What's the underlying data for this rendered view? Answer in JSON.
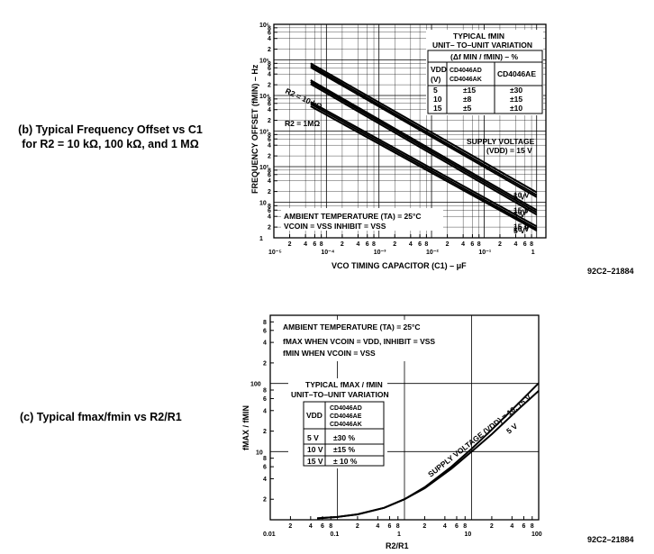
{
  "chart_data": [
    {
      "type": "line",
      "panel_caption_line1": "(b) Typical Frequency Offset vs C1",
      "panel_caption_line2": "for R2 = 10 kΩ, 100 kΩ, and 1 MΩ",
      "figure_code": "92C2–21884",
      "xlabel": "VCO  TIMING  CAPACITOR  (C1) – μF",
      "ylabel": "FREQUENCY  OFFSET  (fMIN) – Hz",
      "x_scale": "log",
      "y_scale": "log",
      "xlim": [
        1e-05,
        1.5
      ],
      "ylim": [
        1,
        1000000
      ],
      "x_decade_labels": [
        "10⁻⁵",
        "10⁻⁴",
        "10⁻³",
        "10⁻²",
        "10⁻¹",
        "1"
      ],
      "y_decade_labels": [
        "1",
        "10",
        "10²",
        "10³",
        "10⁴",
        "10⁵",
        "10⁶"
      ],
      "minor_tick_labels": [
        "2",
        "4",
        "6",
        "8"
      ],
      "grid": true,
      "r2_labels": [
        "R2 = 10 kΩ",
        "R2 = 1MΩ"
      ],
      "series": [
        {
          "name": "R2=10kΩ, 5 V",
          "x": [
            5e-05,
            1
          ],
          "y": [
            62000,
            14
          ]
        },
        {
          "name": "R2=10kΩ, 10 V",
          "x": [
            5e-05,
            1
          ],
          "y": [
            70000,
            16
          ]
        },
        {
          "name": "R2=10kΩ, 15 V",
          "x": [
            5e-05,
            1
          ],
          "y": [
            80000,
            19
          ]
        },
        {
          "name": "R2=100kΩ, 5 V",
          "x": [
            5e-05,
            1
          ],
          "y": [
            21000,
            4.5
          ]
        },
        {
          "name": "R2=100kΩ, 10 V",
          "x": [
            5e-05,
            1
          ],
          "y": [
            24000,
            5.2
          ]
        },
        {
          "name": "R2=100kΩ, 15 V",
          "x": [
            5e-05,
            1
          ],
          "y": [
            27000,
            6
          ]
        },
        {
          "name": "R2=1MΩ, 5 V",
          "x": [
            5e-05,
            1
          ],
          "y": [
            5000,
            1.6
          ]
        },
        {
          "name": "R2=1MΩ, 10 V",
          "x": [
            5e-05,
            1
          ],
          "y": [
            5800,
            1.8
          ]
        },
        {
          "name": "R2=1MΩ, 15 V",
          "x": [
            5e-05,
            1
          ],
          "y": [
            6600,
            2.1
          ]
        }
      ],
      "supply_voltage_label": "SUPPLY VOLTAGE",
      "vdd_label": "(VDD) = 15 V",
      "voltage_labels": [
        "10 V",
        "5 V",
        "15 V",
        "10V",
        "5 V",
        "15 V",
        "10 V",
        "5 V"
      ],
      "conditions_line1": "AMBIENT TEMPERATURE (TA) = 25°C",
      "conditions_line2": "VCOIN = VSS    INHIBIT = VSS",
      "table": {
        "title_line1": "TYPICAL  fMIN",
        "title_line2": "UNIT– TO–UNIT VARIATION",
        "title_line3": "(Δf MIN / fMIN) – %",
        "header_vdd": [
          "VDD",
          "(V)"
        ],
        "header_cols": [
          "CD4046AD CD4046AK",
          "CD4046AE"
        ],
        "rows": [
          [
            "5",
            "±15",
            "±30"
          ],
          [
            "10",
            "±8",
            "±15"
          ],
          [
            "15",
            "±5",
            "±10"
          ]
        ]
      }
    },
    {
      "type": "line",
      "panel_caption": "(c) Typical fmax/fmin vs R2/R1",
      "figure_code": "92C2–21884",
      "xlabel": "R2/R1",
      "ylabel": "fMAX / fMIN",
      "x_scale": "log",
      "y_scale": "log",
      "xlim": [
        0.01,
        100
      ],
      "ylim": [
        1,
        1000
      ],
      "x_decade_labels": [
        "0.01",
        "0.1",
        "1",
        "10",
        "100"
      ],
      "y_decade_labels": [
        "100",
        "10"
      ],
      "minor_tick_labels": [
        "2",
        "4",
        "6",
        "8"
      ],
      "grid": true,
      "series": [
        {
          "name": "VDD = 10, 15 V",
          "x": [
            0.05,
            0.1,
            0.2,
            0.5,
            1,
            2,
            5,
            10,
            20,
            50,
            100
          ],
          "y": [
            1.05,
            1.1,
            1.2,
            1.5,
            2,
            3,
            6,
            11,
            21,
            51,
            101
          ]
        },
        {
          "name": "5 V",
          "x": [
            0.05,
            0.1,
            0.2,
            0.5,
            1,
            2,
            5,
            10,
            20,
            50,
            100
          ],
          "y": [
            1.05,
            1.1,
            1.2,
            1.5,
            2,
            2.9,
            5.6,
            10,
            18,
            42,
            78
          ]
        }
      ],
      "curve_label_1": "SUPPLY VOLTAGE (VDD) = 10, 15 V",
      "curve_label_2": "5 V",
      "conditions_line1": "AMBIENT TEMPERATURE (TA) = 25°C",
      "conditions_line2": "fMAX  WHEN  VCOIN = VDD, INHIBIT = VSS",
      "conditions_line3": "fMIN  WHEN  VCOIN = VSS",
      "table": {
        "title_line1": "TYPICAL  fMAX / fMIN",
        "title_line2": "UNIT–TO–UNIT VARIATION",
        "header_vdd": "VDD",
        "header_col": [
          "CD4046AD",
          "CD4046AE",
          "CD4046AK"
        ],
        "rows": [
          [
            "5 V",
            "±30 %"
          ],
          [
            "10 V",
            "±15 %"
          ],
          [
            "15 V",
            "± 10 %"
          ]
        ]
      }
    }
  ]
}
